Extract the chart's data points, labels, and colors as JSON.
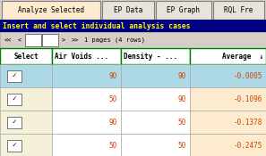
{
  "tabs": [
    {
      "label": "Analyze Selected",
      "active": true
    },
    {
      "label": "EP Data",
      "active": false
    },
    {
      "label": "EP Graph",
      "active": false
    },
    {
      "label": "RQL Fre",
      "active": false
    }
  ],
  "header_text": "Insert and select individual analysis cases",
  "nav_text": "1 pages (4 rows)",
  "columns": [
    "Select",
    "Air Voids ...",
    "Density - ...",
    "Average"
  ],
  "rows": [
    {
      "air_voids": "90",
      "density": "90",
      "average": "-0.0005"
    },
    {
      "air_voids": "50",
      "density": "90",
      "average": "-0.1096"
    },
    {
      "air_voids": "90",
      "density": "50",
      "average": "-0.1378"
    },
    {
      "air_voids": "50",
      "density": "50",
      "average": "-0.2475"
    }
  ],
  "bg_color": "#d4d0c8",
  "active_tab_bg": "#fdebd0",
  "inactive_tab_bg": "#e8e4dc",
  "tab_border": "#808080",
  "header_bg": "#000080",
  "header_fg": "#ffff00",
  "col_header_bg": "#ffffff",
  "col_header_border": "#008000",
  "col_header_fg": "#000000",
  "row1_select_bg": "#add8e6",
  "row1_data_bg": "#add8e6",
  "row1_avg_bg": "#add8e6",
  "rowN_select_bg": "#f5f0d8",
  "rowN_data_bg": "#ffffff",
  "rowN_avg_bg": "#fdebd0",
  "cell_data_fg": "#cc4400",
  "nav_bg": "#d4d0c8"
}
